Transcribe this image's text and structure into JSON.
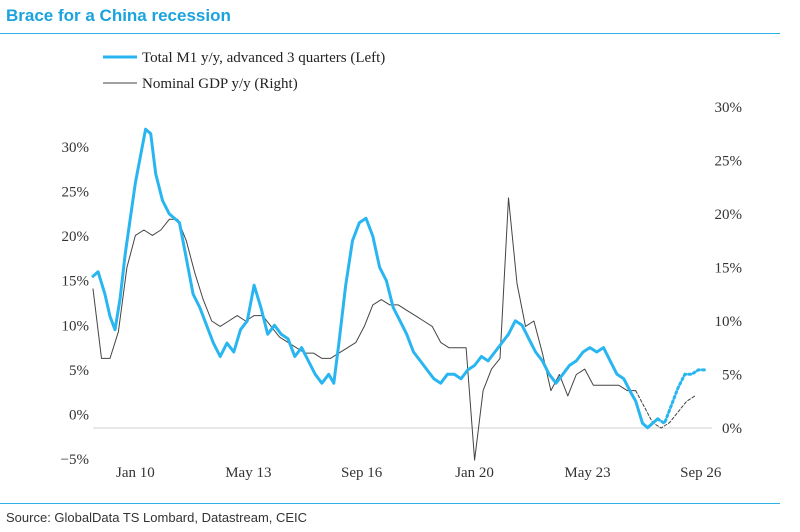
{
  "title": "Brace for a China recession",
  "source": "Source: GlobalData TS Lombard, Datastream, CEIC",
  "chart_data": {
    "type": "line",
    "title": "Brace for a China recession",
    "x_ticks": [
      "Jan 10",
      "May 13",
      "Sep 16",
      "Jan 20",
      "May 23",
      "Sep 26"
    ],
    "x_tick_years": [
      2010.0,
      2013.33,
      2016.67,
      2020.0,
      2023.33,
      2026.67
    ],
    "x_range": [
      2008.75,
      2027.0
    ],
    "left_axis": {
      "ticks": [
        "−5%",
        "0%",
        "5%",
        "10%",
        "15%",
        "20%",
        "25%",
        "30%"
      ],
      "range": [
        -5,
        33
      ]
    },
    "right_axis": {
      "ticks": [
        "0%",
        "5%",
        "10%",
        "15%",
        "20%",
        "25%",
        "30%"
      ],
      "range": [
        -3,
        33
      ]
    },
    "grid": false,
    "zero_line": true,
    "legend_position": "top-left",
    "series": [
      {
        "name": "Total M1 y/y, advanced 3 quarters (Left)",
        "axis": "left",
        "color": "#29b6f0",
        "style": "solid-then-dotted",
        "points": [
          [
            2008.75,
            15.5
          ],
          [
            2008.9,
            16.0
          ],
          [
            2009.1,
            13.5
          ],
          [
            2009.25,
            11.0
          ],
          [
            2009.4,
            9.5
          ],
          [
            2009.55,
            13.0
          ],
          [
            2009.7,
            18.0
          ],
          [
            2009.85,
            22.0
          ],
          [
            2010.0,
            26.0
          ],
          [
            2010.15,
            29.0
          ],
          [
            2010.3,
            32.0
          ],
          [
            2010.45,
            31.5
          ],
          [
            2010.6,
            27.0
          ],
          [
            2010.8,
            24.0
          ],
          [
            2011.0,
            22.5
          ],
          [
            2011.15,
            22.0
          ],
          [
            2011.3,
            21.5
          ],
          [
            2011.5,
            17.5
          ],
          [
            2011.7,
            13.5
          ],
          [
            2011.9,
            12.0
          ],
          [
            2012.1,
            10.0
          ],
          [
            2012.3,
            8.0
          ],
          [
            2012.5,
            6.5
          ],
          [
            2012.7,
            8.0
          ],
          [
            2012.9,
            7.0
          ],
          [
            2013.1,
            9.5
          ],
          [
            2013.3,
            10.5
          ],
          [
            2013.5,
            14.5
          ],
          [
            2013.7,
            12.0
          ],
          [
            2013.9,
            9.0
          ],
          [
            2014.1,
            10.0
          ],
          [
            2014.3,
            9.0
          ],
          [
            2014.5,
            8.5
          ],
          [
            2014.7,
            6.5
          ],
          [
            2014.9,
            7.5
          ],
          [
            2015.1,
            6.0
          ],
          [
            2015.3,
            4.5
          ],
          [
            2015.5,
            3.5
          ],
          [
            2015.7,
            4.5
          ],
          [
            2015.85,
            3.5
          ],
          [
            2016.0,
            8.0
          ],
          [
            2016.2,
            14.5
          ],
          [
            2016.4,
            19.5
          ],
          [
            2016.6,
            21.5
          ],
          [
            2016.8,
            22.0
          ],
          [
            2017.0,
            20.0
          ],
          [
            2017.2,
            16.5
          ],
          [
            2017.4,
            15.0
          ],
          [
            2017.6,
            12.0
          ],
          [
            2017.8,
            10.5
          ],
          [
            2018.0,
            9.0
          ],
          [
            2018.2,
            7.0
          ],
          [
            2018.4,
            6.0
          ],
          [
            2018.6,
            5.0
          ],
          [
            2018.8,
            4.0
          ],
          [
            2019.0,
            3.5
          ],
          [
            2019.2,
            4.5
          ],
          [
            2019.4,
            4.5
          ],
          [
            2019.6,
            4.0
          ],
          [
            2019.8,
            5.0
          ],
          [
            2020.0,
            5.5
          ],
          [
            2020.2,
            6.5
          ],
          [
            2020.4,
            6.0
          ],
          [
            2020.6,
            7.0
          ],
          [
            2020.8,
            8.0
          ],
          [
            2021.0,
            9.0
          ],
          [
            2021.2,
            10.5
          ],
          [
            2021.4,
            10.0
          ],
          [
            2021.6,
            8.5
          ],
          [
            2021.8,
            7.0
          ],
          [
            2022.0,
            6.0
          ],
          [
            2022.2,
            4.5
          ],
          [
            2022.4,
            3.5
          ],
          [
            2022.6,
            4.5
          ],
          [
            2022.8,
            5.5
          ],
          [
            2023.0,
            6.0
          ],
          [
            2023.2,
            7.0
          ],
          [
            2023.4,
            7.5
          ],
          [
            2023.6,
            7.0
          ],
          [
            2023.8,
            7.5
          ],
          [
            2024.0,
            6.0
          ],
          [
            2024.2,
            4.5
          ],
          [
            2024.4,
            4.0
          ],
          [
            2024.6,
            2.5
          ],
          [
            2024.75,
            1.5
          ],
          [
            2024.95,
            -1.0
          ],
          [
            2025.1,
            -1.5
          ],
          [
            2025.25,
            -1.0
          ],
          [
            2025.4,
            -0.5
          ]
        ],
        "dotted_points": [
          [
            2025.4,
            -0.5
          ],
          [
            2025.6,
            -1.0
          ],
          [
            2025.8,
            1.0
          ],
          [
            2026.0,
            3.0
          ],
          [
            2026.2,
            4.5
          ],
          [
            2026.4,
            4.5
          ],
          [
            2026.6,
            5.0
          ],
          [
            2026.8,
            5.0
          ]
        ]
      },
      {
        "name": "Nominal GDP y/y (Right)",
        "axis": "right",
        "color": "#444444",
        "style": "solid-then-dotted",
        "points": [
          [
            2008.75,
            13.0
          ],
          [
            2009.0,
            6.5
          ],
          [
            2009.25,
            6.5
          ],
          [
            2009.5,
            9.0
          ],
          [
            2009.75,
            15.0
          ],
          [
            2010.0,
            18.0
          ],
          [
            2010.25,
            18.5
          ],
          [
            2010.5,
            18.0
          ],
          [
            2010.75,
            18.5
          ],
          [
            2011.0,
            19.5
          ],
          [
            2011.25,
            19.5
          ],
          [
            2011.5,
            17.5
          ],
          [
            2011.75,
            14.5
          ],
          [
            2012.0,
            12.0
          ],
          [
            2012.25,
            10.0
          ],
          [
            2012.5,
            9.5
          ],
          [
            2012.75,
            10.0
          ],
          [
            2013.0,
            10.5
          ],
          [
            2013.25,
            10.0
          ],
          [
            2013.5,
            10.5
          ],
          [
            2013.75,
            10.5
          ],
          [
            2014.0,
            9.5
          ],
          [
            2014.25,
            8.5
          ],
          [
            2014.5,
            8.0
          ],
          [
            2014.75,
            7.5
          ],
          [
            2015.0,
            7.0
          ],
          [
            2015.25,
            7.0
          ],
          [
            2015.5,
            6.5
          ],
          [
            2015.75,
            6.5
          ],
          [
            2016.0,
            7.0
          ],
          [
            2016.25,
            7.5
          ],
          [
            2016.5,
            8.0
          ],
          [
            2016.75,
            9.5
          ],
          [
            2017.0,
            11.5
          ],
          [
            2017.25,
            12.0
          ],
          [
            2017.5,
            11.5
          ],
          [
            2017.75,
            11.5
          ],
          [
            2018.0,
            11.0
          ],
          [
            2018.25,
            10.5
          ],
          [
            2018.5,
            10.0
          ],
          [
            2018.75,
            9.5
          ],
          [
            2019.0,
            8.0
          ],
          [
            2019.25,
            7.5
          ],
          [
            2019.5,
            7.5
          ],
          [
            2019.75,
            7.5
          ],
          [
            2020.0,
            -3.0
          ],
          [
            2020.25,
            3.5
          ],
          [
            2020.5,
            5.5
          ],
          [
            2020.75,
            6.5
          ],
          [
            2021.0,
            21.5
          ],
          [
            2021.25,
            13.5
          ],
          [
            2021.5,
            9.5
          ],
          [
            2021.75,
            10.0
          ],
          [
            2022.0,
            7.0
          ],
          [
            2022.25,
            3.5
          ],
          [
            2022.5,
            5.0
          ],
          [
            2022.75,
            3.0
          ],
          [
            2023.0,
            5.0
          ],
          [
            2023.25,
            5.5
          ],
          [
            2023.5,
            4.0
          ],
          [
            2023.75,
            4.0
          ],
          [
            2024.0,
            4.0
          ],
          [
            2024.25,
            4.0
          ],
          [
            2024.5,
            3.5
          ],
          [
            2024.75,
            3.5
          ]
        ],
        "dotted_points": [
          [
            2024.75,
            3.5
          ],
          [
            2025.0,
            2.0
          ],
          [
            2025.25,
            0.5
          ],
          [
            2025.5,
            0.0
          ],
          [
            2025.75,
            0.5
          ],
          [
            2026.0,
            1.5
          ],
          [
            2026.25,
            2.5
          ],
          [
            2026.5,
            3.0
          ]
        ]
      }
    ]
  }
}
